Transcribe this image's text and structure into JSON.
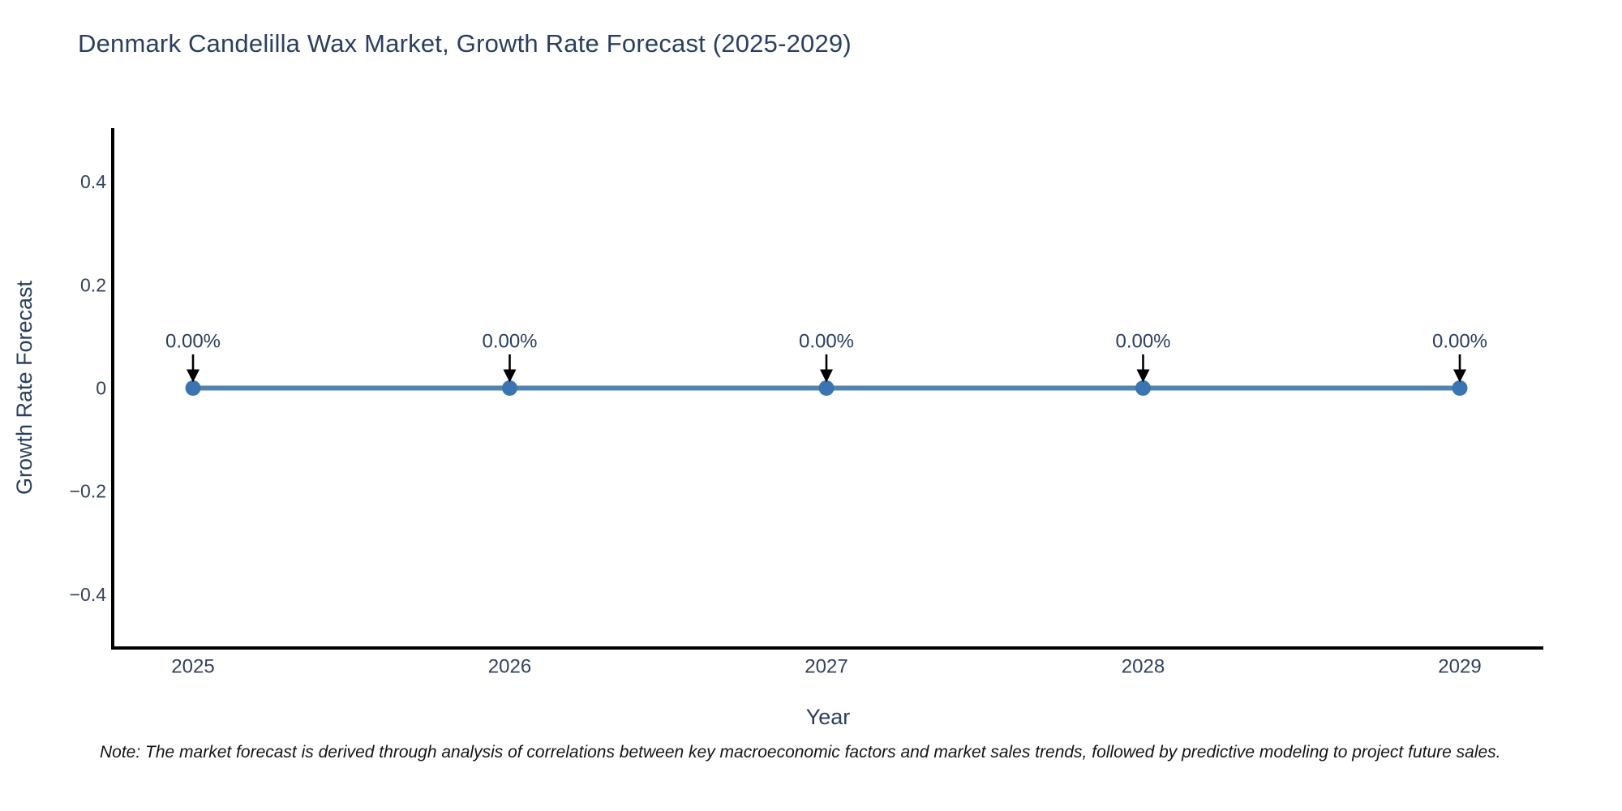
{
  "title": "Denmark Candelilla Wax Market, Growth Rate Forecast (2025-2029)",
  "note": "Note: The market forecast is derived through analysis of correlations between key macroeconomic factors and market sales trends, followed by predictive modeling to project future sales.",
  "chart_data": {
    "type": "line",
    "title": "Denmark Candelilla Wax Market, Growth Rate Forecast (2025-2029)",
    "xlabel": "Year",
    "ylabel": "Growth Rate Forecast",
    "x": [
      2025,
      2026,
      2027,
      2028,
      2029
    ],
    "series": [
      {
        "name": "Growth Rate Forecast",
        "values": [
          0,
          0,
          0,
          0,
          0
        ]
      }
    ],
    "point_labels": [
      "0.00%",
      "0.00%",
      "0.00%",
      "0.00%",
      "0.00%"
    ],
    "xtick_labels": [
      "2025",
      "2026",
      "2027",
      "2028",
      "2029"
    ],
    "yticks": [
      0.4,
      0.2,
      0,
      -0.2,
      -0.4
    ],
    "ytick_labels": [
      "0.4",
      "0.2",
      "0",
      "−0.2",
      "−0.4"
    ],
    "ylim": [
      -0.5,
      0.5
    ],
    "grid": false,
    "legend": "none",
    "colors": {
      "line": "#5083b0",
      "marker": "#3a74b2",
      "arrow": "#000000",
      "axis": "#000000",
      "title_text": "#2a3f5f",
      "tick_text": "#32415c",
      "axis_title_text": "#2a3f5f",
      "annotation_text": "#2a3f5f",
      "note_text": "#141414"
    }
  }
}
